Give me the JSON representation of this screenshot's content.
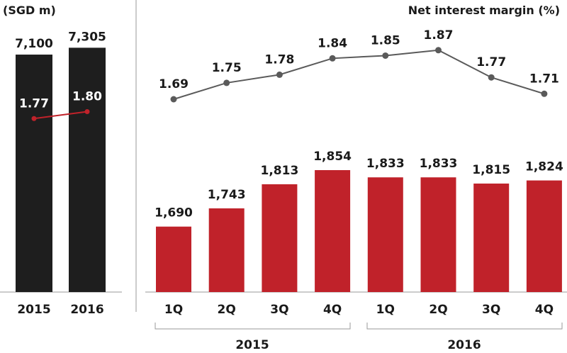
{
  "chart_data": [
    {
      "type": "bar",
      "title": "(SGD m)",
      "categories": [
        "2015",
        "2016"
      ],
      "values": [
        7100,
        7305
      ],
      "value_labels": [
        "7,100",
        "7,305"
      ],
      "bar_color": "#1e1e1e",
      "ylim": [
        0,
        7800
      ],
      "overlay_line": {
        "values": [
          1.77,
          1.8
        ],
        "value_labels": [
          "1.77",
          "1.80"
        ],
        "color": "#c0222a",
        "ylim": [
          1.3,
          2.1
        ]
      }
    },
    {
      "type": "bar",
      "title": "Net interest margin (%)",
      "categories": [
        "1Q",
        "2Q",
        "3Q",
        "4Q",
        "1Q",
        "2Q",
        "3Q",
        "4Q"
      ],
      "groups": [
        {
          "label": "2015",
          "categories": [
            "1Q",
            "2Q",
            "3Q",
            "4Q"
          ]
        },
        {
          "label": "2016",
          "categories": [
            "1Q",
            "2Q",
            "3Q",
            "4Q"
          ]
        }
      ],
      "values": [
        1690,
        1743,
        1813,
        1854,
        1833,
        1833,
        1815,
        1824
      ],
      "value_labels": [
        "1,690",
        "1,743",
        "1,813",
        "1,854",
        "1,833",
        "1,833",
        "1,815",
        "1,824"
      ],
      "bar_color": "#c0222a",
      "ylim": [
        0,
        1854
      ],
      "overlay_line": {
        "values": [
          1.69,
          1.75,
          1.78,
          1.84,
          1.85,
          1.87,
          1.77,
          1.71
        ],
        "value_labels": [
          "1.69",
          "1.75",
          "1.78",
          "1.84",
          "1.85",
          "1.87",
          "1.77",
          "1.71"
        ],
        "color": "#5a5a5a",
        "ylim": [
          1.56,
          1.95
        ]
      }
    }
  ]
}
